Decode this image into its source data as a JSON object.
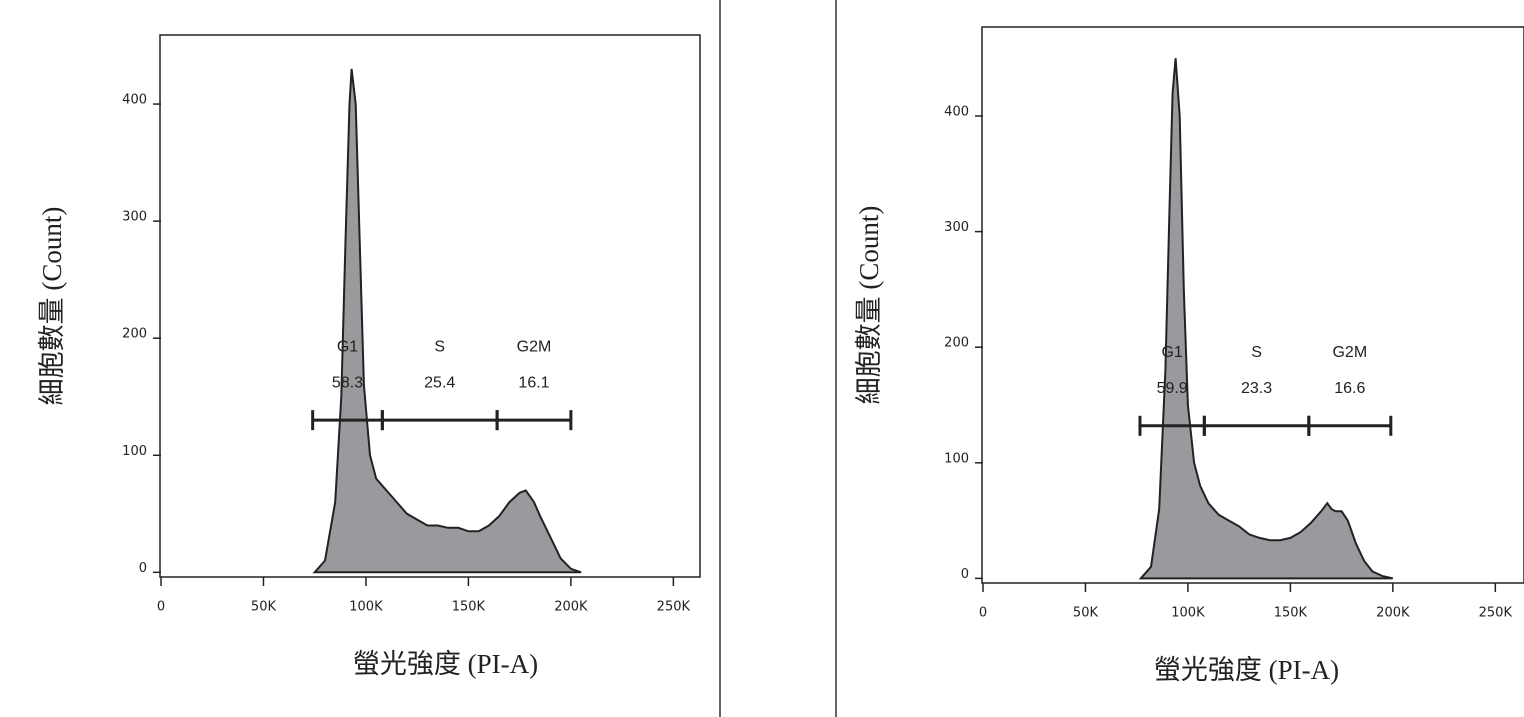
{
  "chart_data": [
    {
      "type": "area",
      "xlabel": "螢光強度 (PI-A)",
      "ylabel": "細胞數量 (Count)",
      "color": "#8f8f93",
      "x": [
        75000,
        80000,
        85000,
        88000,
        90000,
        92000,
        93000,
        95000,
        97000,
        99000,
        102000,
        105000,
        110000,
        115000,
        120000,
        125000,
        130000,
        135000,
        140000,
        145000,
        150000,
        155000,
        160000,
        165000,
        170000,
        175000,
        178000,
        182000,
        185000,
        190000,
        195000,
        200000,
        205000
      ],
      "values": [
        0,
        10,
        60,
        150,
        280,
        400,
        430,
        400,
        280,
        160,
        100,
        80,
        70,
        60,
        50,
        45,
        40,
        40,
        38,
        38,
        35,
        35,
        40,
        48,
        60,
        68,
        70,
        60,
        48,
        30,
        12,
        3,
        0
      ],
      "xlim": [
        0,
        263000
      ],
      "ylim": [
        -4,
        459
      ],
      "xticks": [
        0,
        {
          "value": 50000,
          "label": "50K"
        },
        {
          "value": 100000,
          "label": "100K"
        },
        {
          "value": 150000,
          "label": "150K"
        },
        {
          "value": 200000,
          "label": "200K"
        },
        {
          "value": 250000,
          "label": "250K"
        }
      ],
      "yticks": [
        0,
        100,
        200,
        300,
        400
      ],
      "gate_y": 130,
      "gates": [
        {
          "name": "G1",
          "percent": 58.3,
          "range": [
            74000,
            108000
          ]
        },
        {
          "name": "S",
          "percent": 25.4,
          "range": [
            108000,
            164000
          ]
        },
        {
          "name": "G2M",
          "percent": 16.1,
          "range": [
            164000,
            200000
          ]
        }
      ]
    },
    {
      "type": "area",
      "xlabel": "螢光強度 (PI-A)",
      "ylabel": "細胞數量 (Count)",
      "color": "#8f8f93",
      "x": [
        77000,
        82000,
        86000,
        89000,
        91000,
        92500,
        94000,
        96000,
        98000,
        100000,
        103000,
        106000,
        110000,
        115000,
        120000,
        125000,
        130000,
        135000,
        140000,
        145000,
        150000,
        155000,
        160000,
        165000,
        168000,
        170000,
        172000,
        175000,
        178000,
        182000,
        186000,
        190000,
        195000,
        200000
      ],
      "values": [
        0,
        10,
        60,
        180,
        320,
        420,
        450,
        400,
        250,
        150,
        100,
        80,
        65,
        55,
        50,
        45,
        38,
        35,
        33,
        33,
        35,
        40,
        48,
        58,
        65,
        60,
        58,
        58,
        50,
        30,
        15,
        6,
        2,
        0
      ],
      "xlim": [
        0,
        264000
      ],
      "ylim": [
        -4,
        477
      ],
      "xticks": [
        0,
        {
          "value": 50000,
          "label": "50K"
        },
        {
          "value": 100000,
          "label": "100K"
        },
        {
          "value": 150000,
          "label": "150K"
        },
        {
          "value": 200000,
          "label": "200K"
        },
        {
          "value": 250000,
          "label": "250K"
        }
      ],
      "yticks": [
        0,
        100,
        200,
        300,
        400
      ],
      "gate_y": 132,
      "gates": [
        {
          "name": "G1",
          "percent": 59.9,
          "range": [
            76600,
            108000
          ]
        },
        {
          "name": "S",
          "percent": 23.3,
          "range": [
            108000,
            159000
          ]
        },
        {
          "name": "G2M",
          "percent": 16.6,
          "range": [
            159000,
            199000
          ]
        }
      ]
    }
  ]
}
